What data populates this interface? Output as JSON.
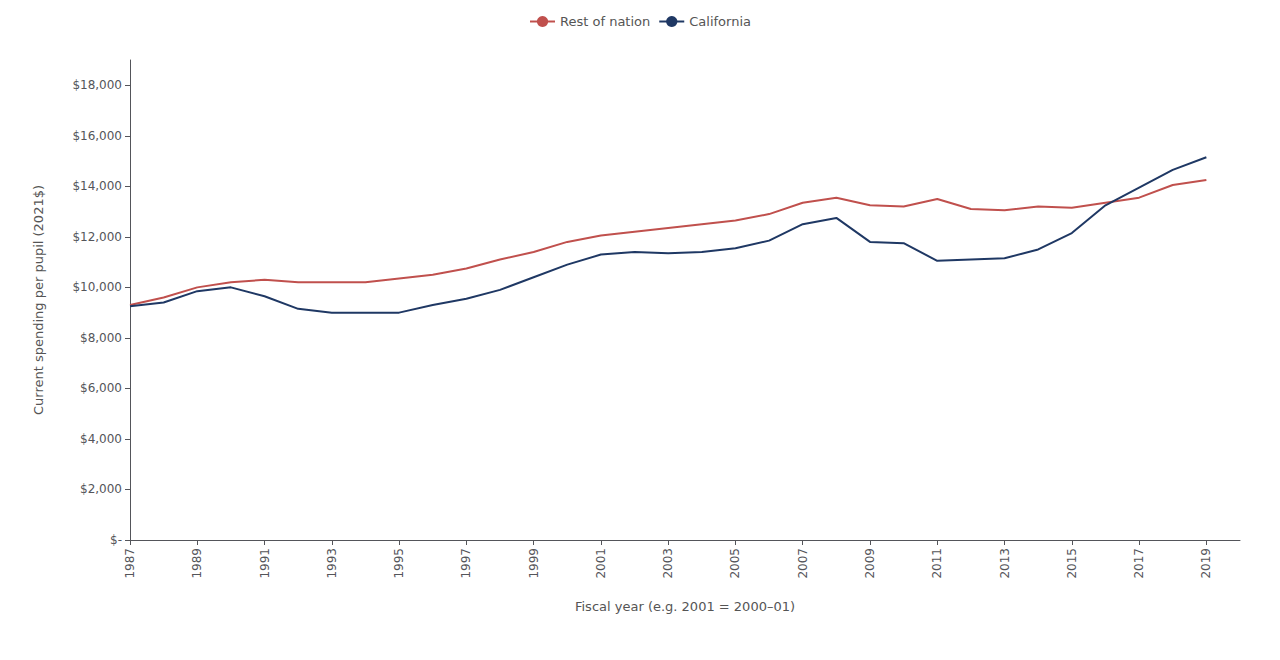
{
  "chart_data": {
    "type": "line",
    "xlabel": "Fiscal year (e.g. 2001 = 2000–01)",
    "ylabel": "Current spending per pupil (2021$)",
    "x": [
      1987,
      1988,
      1989,
      1990,
      1991,
      1992,
      1993,
      1994,
      1995,
      1996,
      1997,
      1998,
      1999,
      2000,
      2001,
      2002,
      2003,
      2004,
      2005,
      2006,
      2007,
      2008,
      2009,
      2010,
      2011,
      2012,
      2013,
      2014,
      2015,
      2016,
      2017,
      2018,
      2019
    ],
    "series": [
      {
        "name": "Rest of nation",
        "color": "#C0504D",
        "values": [
          9300,
          9600,
          10000,
          10200,
          10300,
          10200,
          10200,
          10200,
          10350,
          10500,
          10750,
          11100,
          11400,
          11800,
          12050,
          12200,
          12350,
          12500,
          12650,
          12900,
          13350,
          13550,
          13250,
          13200,
          13500,
          13100,
          13050,
          13200,
          13150,
          13350,
          13550,
          14050,
          14250
        ]
      },
      {
        "name": "California",
        "color": "#1F3864",
        "values": [
          9250,
          9400,
          9850,
          10000,
          9650,
          9150,
          9000,
          9000,
          9000,
          9300,
          9550,
          9900,
          10400,
          10900,
          11300,
          11400,
          11350,
          11400,
          11550,
          11850,
          12500,
          12750,
          11800,
          11750,
          11050,
          11100,
          11150,
          11500,
          12150,
          13250,
          13950,
          14650,
          15150
        ]
      }
    ],
    "xlim": [
      1987,
      2020
    ],
    "xticks": [
      1987,
      1989,
      1991,
      1993,
      1995,
      1997,
      1999,
      2001,
      2003,
      2005,
      2007,
      2009,
      2011,
      2013,
      2015,
      2017,
      2019
    ],
    "ylim": [
      0,
      19000
    ],
    "yticks": [
      {
        "value": 0,
        "label": "$-"
      },
      {
        "value": 2000,
        "label": "$2,000"
      },
      {
        "value": 4000,
        "label": "$4,000"
      },
      {
        "value": 6000,
        "label": "$6,000"
      },
      {
        "value": 8000,
        "label": "$8,000"
      },
      {
        "value": 10000,
        "label": "$10,000"
      },
      {
        "value": 12000,
        "label": "$12,000"
      },
      {
        "value": 14000,
        "label": "$14,000"
      },
      {
        "value": 16000,
        "label": "$16,000"
      },
      {
        "value": 18000,
        "label": "$18,000"
      }
    ],
    "grid": false,
    "legend": "top"
  }
}
